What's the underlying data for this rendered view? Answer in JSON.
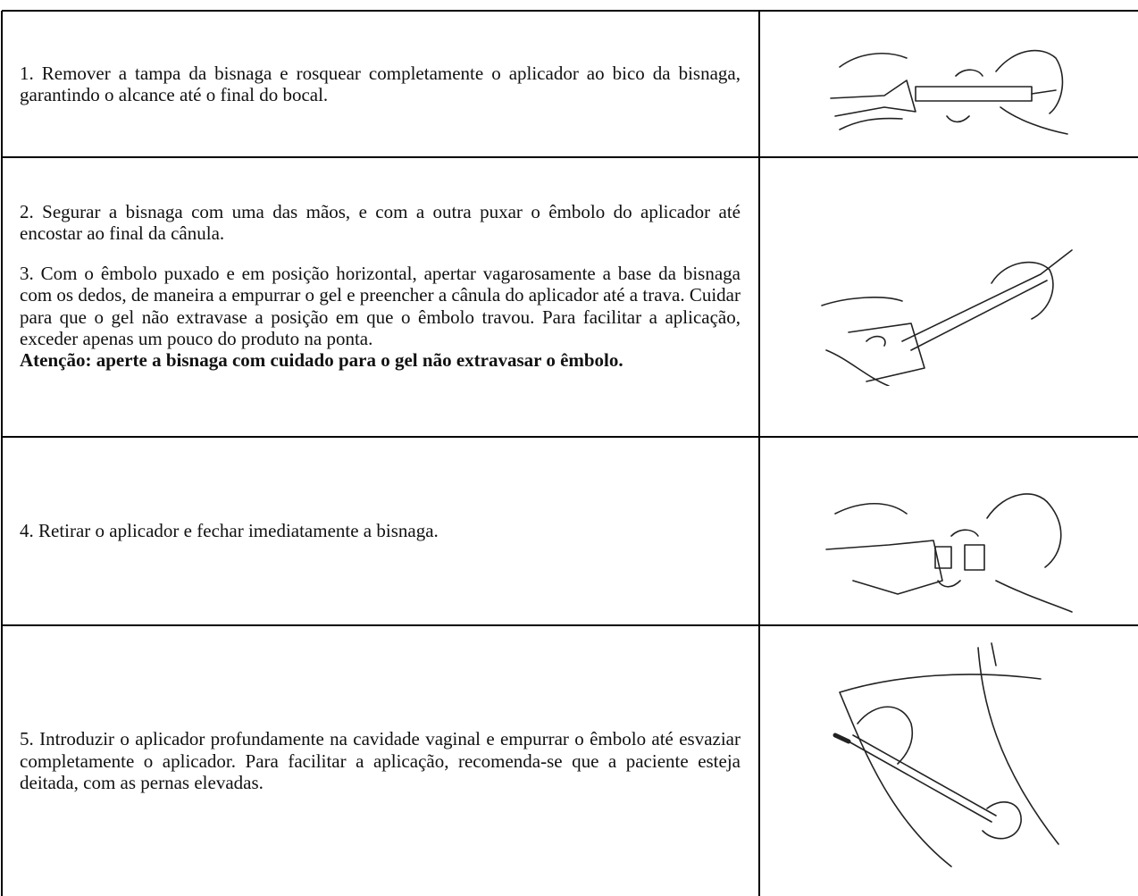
{
  "table": {
    "rows": [
      {
        "paragraphs": [
          "1. Remover a tampa da bisnaga e rosquear completamente o aplicador ao bico da bisnaga, garantindo o alcance até o final do bocal."
        ]
      },
      {
        "paragraphs": [
          "2. Segurar a bisnaga com uma das mãos, e com a outra puxar o êmbolo do aplicador até encostar ao final da cânula.",
          "3. Com o êmbolo puxado e em posição horizontal, apertar vagarosamente a base da bisnaga com os dedos, de maneira a empurrar o gel e preencher a cânula do aplicador até a trava. Cuidar para que o gel não extravase a posição em que o êmbolo travou. Para facilitar a aplicação, exceder apenas um pouco do produto na ponta."
        ],
        "warning": "Atenção: aperte a bisnaga com cuidado para o gel não extravasar o êmbolo."
      },
      {
        "paragraphs": [
          "4. Retirar o aplicador e fechar imediatamente a bisnaga."
        ]
      },
      {
        "paragraphs": [
          "5. Introduzir o aplicador profundamente na cavidade vaginal e empurrar o êmbolo até esvaziar completamente o aplicador. Para facilitar a aplicação, recomenda-se que a paciente esteja deitada, com as pernas elevadas."
        ]
      }
    ]
  }
}
